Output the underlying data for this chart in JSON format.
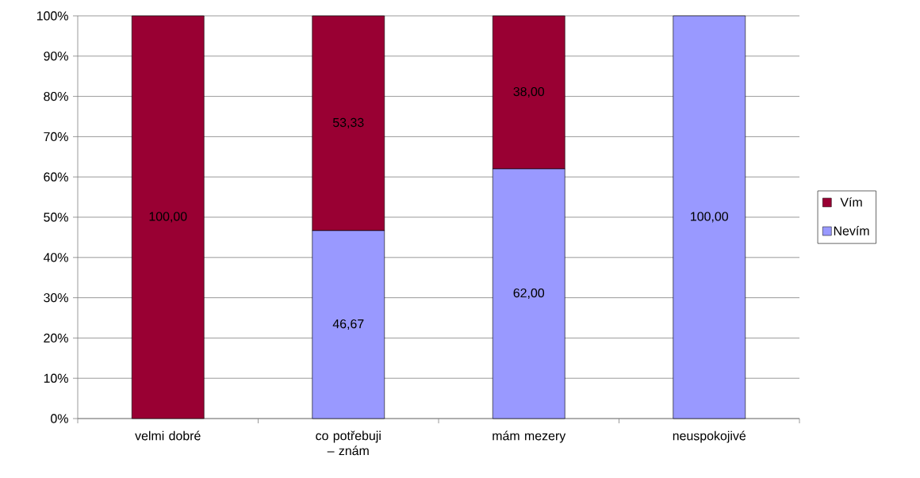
{
  "chart_data": {
    "type": "bar",
    "stacked": true,
    "categories": [
      "velmi dobré",
      "co potřebuji – znám",
      "mám mezery",
      "neuspokojivé"
    ],
    "series": [
      {
        "name": "Nevím",
        "color": "#9999ff",
        "values": [
          0,
          46.67,
          62,
          100
        ],
        "value_labels": [
          null,
          "46,67",
          "62,00",
          "100,00"
        ]
      },
      {
        "name": "Vím",
        "color": "#990033",
        "values": [
          100,
          53.33,
          38,
          0
        ],
        "value_labels": [
          "100,00",
          "53,33",
          "38,00",
          null
        ]
      }
    ],
    "ylim": [
      0,
      100
    ],
    "yticks": [
      {
        "value": 0,
        "label": "0%"
      },
      {
        "value": 10,
        "label": "10%"
      },
      {
        "value": 20,
        "label": "20%"
      },
      {
        "value": 30,
        "label": "30%"
      },
      {
        "value": 40,
        "label": "40%"
      },
      {
        "value": 50,
        "label": "50%"
      },
      {
        "value": 60,
        "label": "60%"
      },
      {
        "value": 70,
        "label": "70%"
      },
      {
        "value": 80,
        "label": "80%"
      },
      {
        "value": 90,
        "label": "90%"
      },
      {
        "value": 100,
        "label": "100%"
      }
    ],
    "grid": "y",
    "legend": "right"
  }
}
